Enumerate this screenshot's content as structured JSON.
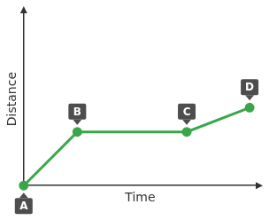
{
  "chart_data": {
    "type": "line",
    "x_label": "Time",
    "y_label": "Distance",
    "x": [
      0,
      2.3,
      7.0,
      9.7
    ],
    "values": [
      0,
      3.1,
      3.1,
      4.5
    ],
    "point_labels": [
      "A",
      "B",
      "C",
      "D"
    ],
    "color": "#3aa64a",
    "marker": "circle",
    "xlim": [
      0,
      10
    ],
    "ylim": [
      0,
      10
    ],
    "tick_labels": false,
    "grid": false
  }
}
